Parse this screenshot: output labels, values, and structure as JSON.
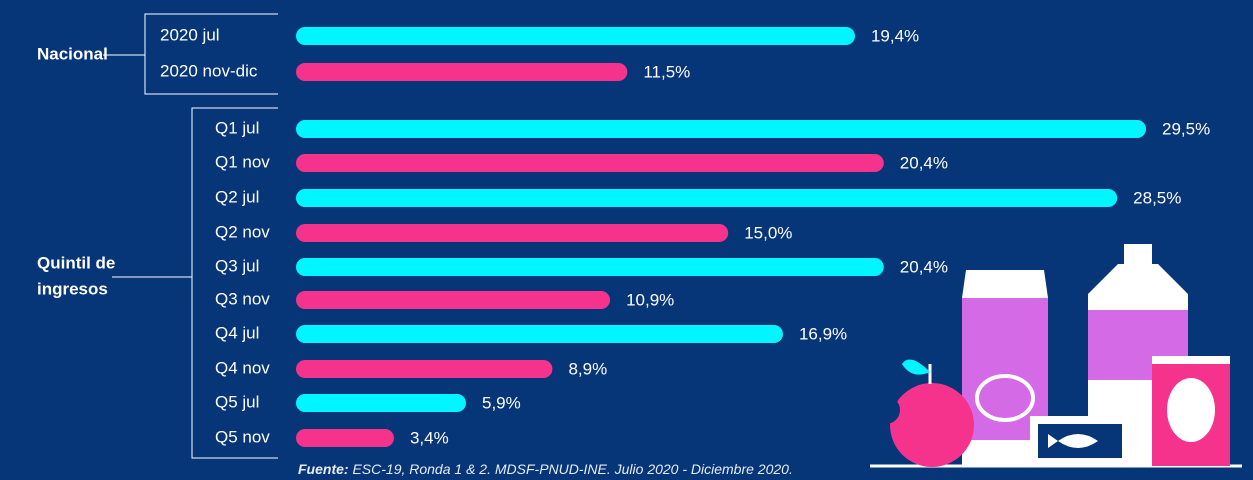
{
  "chart_data": {
    "type": "bar",
    "orientation": "horizontal",
    "groups": [
      {
        "name_lines": [
          "Nacional"
        ],
        "categories": [
          "2020 jul",
          "2020 nov-dic"
        ],
        "values": [
          19.4,
          11.5
        ],
        "value_labels": [
          "19,4%",
          "11,5%"
        ],
        "colors": [
          "#00f6ff",
          "#f5338d"
        ]
      },
      {
        "name_lines": [
          "Quintil de",
          "ingresos"
        ],
        "categories": [
          "Q1 jul",
          "Q1 nov",
          "Q2 jul",
          "Q2 nov",
          "Q3 jul",
          "Q3 nov",
          "Q4 jul",
          "Q4 nov",
          "Q5 jul",
          "Q5 nov"
        ],
        "values": [
          29.5,
          20.4,
          28.5,
          15.0,
          20.4,
          10.9,
          16.9,
          8.9,
          5.9,
          3.4
        ],
        "value_labels": [
          "29,5%",
          "20,4%",
          "28,5%",
          "15,0%",
          "20,4%",
          "10,9%",
          "16,9%",
          "8,9%",
          "5,9%",
          "3,4%"
        ],
        "colors": [
          "#00f6ff",
          "#f5338d",
          "#00f6ff",
          "#f5338d",
          "#00f6ff",
          "#f5338d",
          "#00f6ff",
          "#f5338d",
          "#00f6ff",
          "#f5338d"
        ]
      }
    ],
    "source_label": "Fuente:",
    "source_text": "ESC-19, Ronda 1 & 2. MDSF-PNUD-INE. Julio 2020 - Diciembre 2020."
  }
}
